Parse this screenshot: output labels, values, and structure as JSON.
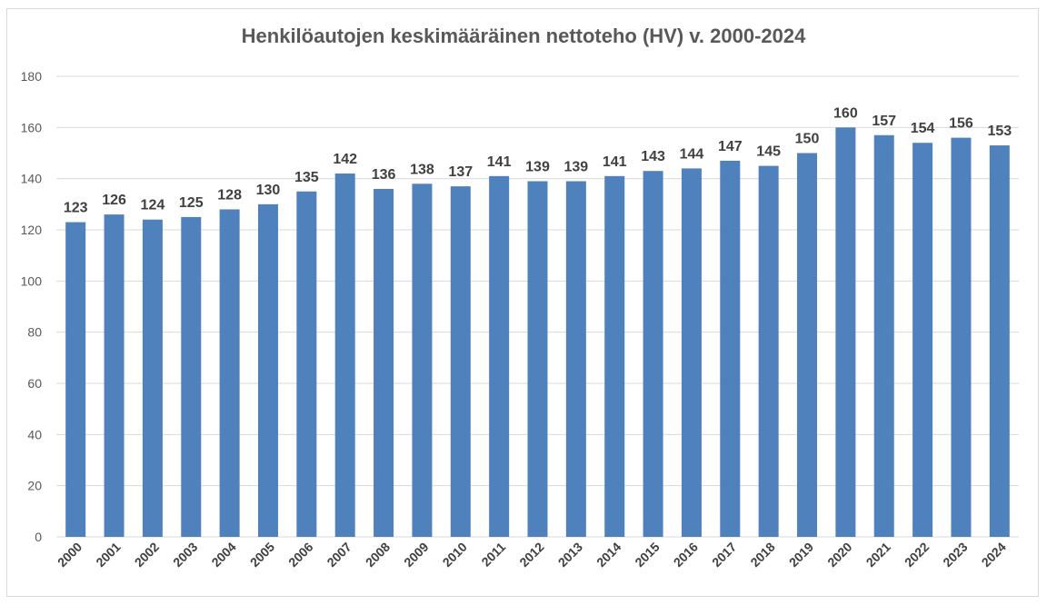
{
  "chart_data": {
    "type": "bar",
    "title": "Henkilöautojen keskimääräinen nettoteho (HV) v. 2000-2024",
    "xlabel": "",
    "ylabel": "",
    "categories": [
      "2000",
      "2001",
      "2002",
      "2003",
      "2004",
      "2005",
      "2006",
      "2007",
      "2008",
      "2009",
      "2010",
      "2011",
      "2012",
      "2013",
      "2014",
      "2015",
      "2016",
      "2017",
      "2018",
      "2019",
      "2020",
      "2021",
      "2022",
      "2023",
      "2024"
    ],
    "values": [
      123,
      126,
      124,
      125,
      128,
      130,
      135,
      142,
      136,
      138,
      137,
      141,
      139,
      139,
      141,
      143,
      144,
      147,
      145,
      150,
      160,
      157,
      154,
      156,
      153
    ],
    "ylim": [
      0,
      180
    ],
    "yticks": [
      0,
      20,
      40,
      60,
      80,
      100,
      120,
      140,
      160,
      180
    ],
    "grid": true,
    "legend": "none",
    "bar_color": "#4f81bd",
    "data_labels": true
  }
}
